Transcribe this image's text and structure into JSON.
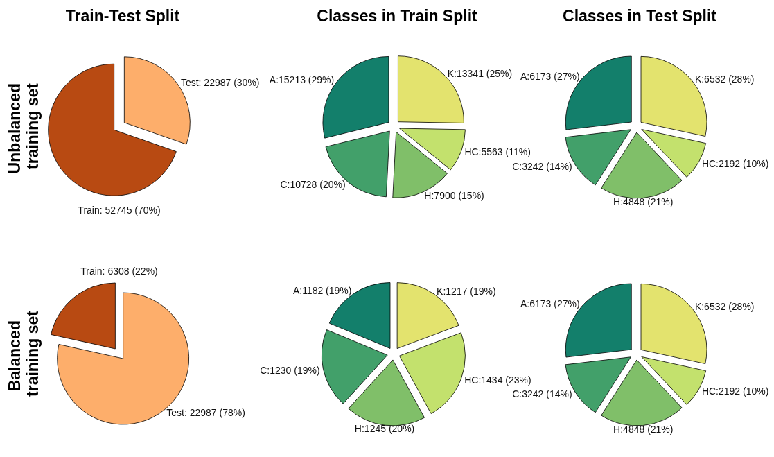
{
  "chart_data": [
    {
      "type": "pie",
      "title": "Train-Test Split",
      "ylabel": "Unbalanced training set",
      "categories": [
        "Test: 22987 (30%)",
        "Train: 52745 (70%)"
      ],
      "values": [
        22987,
        52745
      ],
      "colors": [
        "#fdae6b",
        "#b84a12"
      ]
    },
    {
      "type": "pie",
      "title": "Classes in Train Split",
      "categories": [
        "K:13341 (25%)",
        "HC:5563 (11%)",
        "H:7900 (15%)",
        "C:10728 (20%)",
        "A:15213 (29%)"
      ],
      "values": [
        13341,
        5563,
        7900,
        10728,
        15213
      ],
      "colors": [
        "#e3e36e",
        "#c3e16d",
        "#80bf69",
        "#42a06a",
        "#137f6b"
      ]
    },
    {
      "type": "pie",
      "title": "Classes in Test Split",
      "categories": [
        "K:6532 (28%)",
        "HC:2192 (10%)",
        "H:4848 (21%)",
        "C:3242 (14%)",
        "A:6173 (27%)"
      ],
      "values": [
        6532,
        2192,
        4848,
        3242,
        6173
      ],
      "colors": [
        "#e3e36e",
        "#c3e16d",
        "#80bf69",
        "#42a06a",
        "#137f6b"
      ]
    },
    {
      "type": "pie",
      "ylabel": "Balanced training set",
      "categories": [
        "Test: 22987 (78%)",
        "Train: 6308 (22%)"
      ],
      "values": [
        22987,
        6308
      ],
      "colors": [
        "#fdae6b",
        "#b84a12"
      ]
    },
    {
      "type": "pie",
      "categories": [
        "K:1217 (19%)",
        "HC:1434 (23%)",
        "H:1245 (20%)",
        "C:1230 (19%)",
        "A:1182 (19%)"
      ],
      "values": [
        1217,
        1434,
        1245,
        1230,
        1182
      ],
      "colors": [
        "#e3e36e",
        "#c3e16d",
        "#80bf69",
        "#42a06a",
        "#137f6b"
      ]
    },
    {
      "type": "pie",
      "categories": [
        "K:6532 (28%)",
        "HC:2192 (10%)",
        "H:4848 (21%)",
        "C:3242 (14%)",
        "A:6173 (27%)"
      ],
      "values": [
        6532,
        2192,
        4848,
        3242,
        6173
      ],
      "colors": [
        "#e3e36e",
        "#c3e16d",
        "#80bf69",
        "#42a06a",
        "#137f6b"
      ]
    }
  ]
}
